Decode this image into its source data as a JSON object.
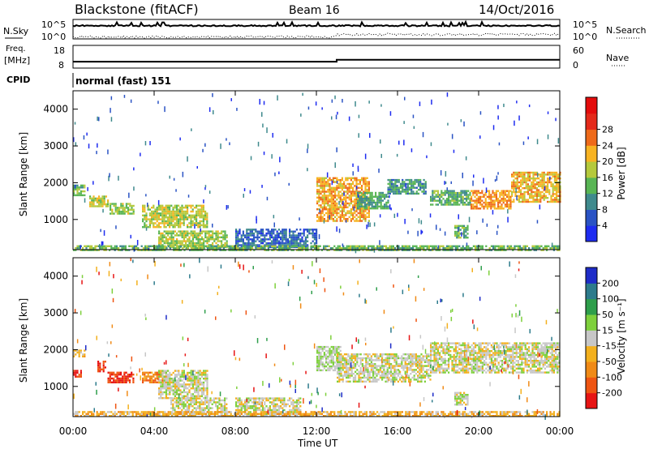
{
  "header": {
    "station": "Blackstone (fitACF)",
    "beam": "Beam 16",
    "date": "14/Oct/2016"
  },
  "strips": {
    "noise": {
      "left_label": "N.Sky",
      "right_label": "N.Search",
      "left_ticks": [
        "10^5",
        "10^0"
      ],
      "right_ticks": [
        "10^5",
        "10^0"
      ]
    },
    "freq": {
      "left_label_1": "Freq.",
      "left_label_2": "[MHz]",
      "left_ticks": [
        "18",
        "8"
      ],
      "right_label": "Nave",
      "right_ticks": [
        "60",
        "0"
      ],
      "freq_mhz_start": 10.5,
      "freq_mhz_end": 10.5,
      "nave_start": 17,
      "nave_end": 22,
      "nave_step_time": "13:00"
    },
    "cpid": {
      "label": "CPID",
      "value": "normal (fast) 151"
    }
  },
  "axes": {
    "xlabel": "Time UT",
    "xticks": [
      "00:00",
      "04:00",
      "08:00",
      "12:00",
      "16:00",
      "20:00",
      "00:00"
    ],
    "ylabel": "Slant Range [km]",
    "yticks": [
      "1000",
      "2000",
      "3000",
      "4000"
    ]
  },
  "colorbars": {
    "power": {
      "label": "Power [dB]",
      "ticks": [
        "4",
        "8",
        "12",
        "16",
        "20",
        "24",
        "28"
      ],
      "colors": [
        "#1e2cf0",
        "#2a53c4",
        "#3f8a8d",
        "#58b554",
        "#b5c93c",
        "#f7b322",
        "#ee6a1a",
        "#e42a1a",
        "#e40c0c"
      ]
    },
    "velocity": {
      "label": "Velocity [m s⁻¹]",
      "ticks": [
        "200",
        "100",
        "50",
        "15",
        "-15",
        "-50",
        "-100",
        "-200"
      ],
      "colors": [
        "#1e2cc8",
        "#2d7b8c",
        "#2e9e4b",
        "#7ed03c",
        "#c7c7c7",
        "#f3b01d",
        "#f08a16",
        "#ef5512",
        "#e71414"
      ]
    }
  },
  "chart_data": [
    {
      "type": "heatmap",
      "title": "Power [dB]",
      "xlabel": "Time UT",
      "ylabel": "Slant Range [km]",
      "x_range_hours": [
        0,
        24
      ],
      "y_range_km": [
        180,
        4500
      ],
      "value_range": [
        0,
        30
      ],
      "regions": [
        {
          "t0": 0.0,
          "t1": 0.6,
          "r0": 1650,
          "r1": 1950,
          "value": 12
        },
        {
          "t0": 0.8,
          "t1": 1.7,
          "r0": 1350,
          "r1": 1650,
          "value": 15
        },
        {
          "t0": 1.8,
          "t1": 3.0,
          "r0": 1150,
          "r1": 1450,
          "value": 14
        },
        {
          "t0": 3.4,
          "t1": 6.6,
          "r0": 800,
          "r1": 1400,
          "value": 15
        },
        {
          "t0": 4.2,
          "t1": 7.6,
          "r0": 250,
          "r1": 700,
          "value": 14
        },
        {
          "t0": 8.0,
          "t1": 12.0,
          "r0": 250,
          "r1": 750,
          "value": 6
        },
        {
          "t0": 12.0,
          "t1": 14.6,
          "r0": 950,
          "r1": 2150,
          "value": 19
        },
        {
          "t0": 14.0,
          "t1": 15.5,
          "r0": 1300,
          "r1": 1750,
          "value": 10
        },
        {
          "t0": 15.5,
          "t1": 17.4,
          "r0": 1700,
          "r1": 2100,
          "value": 9
        },
        {
          "t0": 17.6,
          "t1": 19.6,
          "r0": 1400,
          "r1": 1800,
          "value": 11
        },
        {
          "t0": 19.6,
          "t1": 21.6,
          "r0": 1300,
          "r1": 1800,
          "value": 20
        },
        {
          "t0": 21.6,
          "t1": 24.0,
          "r0": 1500,
          "r1": 2300,
          "value": 18
        },
        {
          "t0": 18.8,
          "t1": 19.5,
          "r0": 500,
          "r1": 850,
          "value": 12
        },
        {
          "t0": 0.0,
          "t1": 24.0,
          "r0": 180,
          "r1": 300,
          "value": 12
        }
      ]
    },
    {
      "type": "heatmap",
      "title": "Velocity [m s⁻¹]",
      "xlabel": "Time UT",
      "ylabel": "Slant Range [km]",
      "x_range_hours": [
        0,
        24
      ],
      "y_range_km": [
        180,
        4500
      ],
      "value_range": [
        -250,
        250
      ],
      "regions": [
        {
          "t0": 0.0,
          "t1": 0.4,
          "r0": 1250,
          "r1": 1450,
          "value": -200
        },
        {
          "t0": 0.0,
          "t1": 0.6,
          "r0": 1800,
          "r1": 2000,
          "value": -50
        },
        {
          "t0": 1.2,
          "t1": 1.6,
          "r0": 1400,
          "r1": 1700,
          "value": -200
        },
        {
          "t0": 1.7,
          "t1": 3.0,
          "r0": 1100,
          "r1": 1400,
          "value": -200
        },
        {
          "t0": 3.4,
          "t1": 4.6,
          "r0": 1100,
          "r1": 1400,
          "value": -120
        },
        {
          "t0": 4.2,
          "t1": 6.6,
          "r0": 700,
          "r1": 1450,
          "value": 0
        },
        {
          "t0": 4.8,
          "t1": 7.6,
          "r0": 250,
          "r1": 700,
          "value": 0
        },
        {
          "t0": 8.0,
          "t1": 11.2,
          "r0": 250,
          "r1": 700,
          "value": 0
        },
        {
          "t0": 12.0,
          "t1": 13.2,
          "r0": 1450,
          "r1": 2100,
          "value": 30
        },
        {
          "t0": 13.0,
          "t1": 17.6,
          "r0": 1150,
          "r1": 1900,
          "value": 0
        },
        {
          "t0": 17.6,
          "t1": 24.0,
          "r0": 1400,
          "r1": 2200,
          "value": 0
        },
        {
          "t0": 18.8,
          "t1": 19.5,
          "r0": 500,
          "r1": 850,
          "value": 0
        },
        {
          "t0": 0.0,
          "t1": 24.0,
          "r0": 180,
          "r1": 330,
          "value": -60
        }
      ]
    }
  ]
}
